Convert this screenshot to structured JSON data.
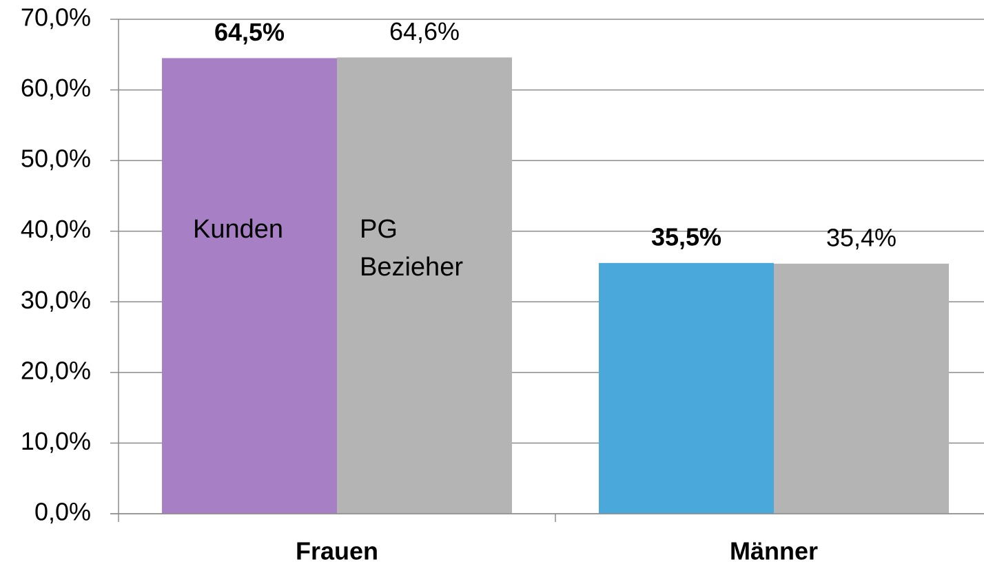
{
  "chart_data": {
    "type": "bar",
    "categories": [
      "Frauen",
      "Männer"
    ],
    "series": [
      {
        "name": "Kunden",
        "colors": [
          "#a77fc5",
          "#4aa8db"
        ],
        "values": [
          64.5,
          35.5
        ],
        "value_labels": [
          "64,5%",
          "35,5%"
        ]
      },
      {
        "name": "PG Bezieher",
        "color": "#b4b4b4",
        "values": [
          64.6,
          35.4
        ],
        "value_labels": [
          "64,6%",
          "35,4%"
        ]
      }
    ],
    "ylim": [
      0,
      70
    ],
    "yticks": [
      {
        "value": 0,
        "label": "0,0%"
      },
      {
        "value": 10,
        "label": "10,0%"
      },
      {
        "value": 20,
        "label": "20,0%"
      },
      {
        "value": 30,
        "label": "30,0%"
      },
      {
        "value": 40,
        "label": "40,0%"
      },
      {
        "value": 50,
        "label": "50,0%"
      },
      {
        "value": 60,
        "label": "60,0%"
      },
      {
        "value": 70,
        "label": "70,0%"
      }
    ],
    "grid": true
  }
}
